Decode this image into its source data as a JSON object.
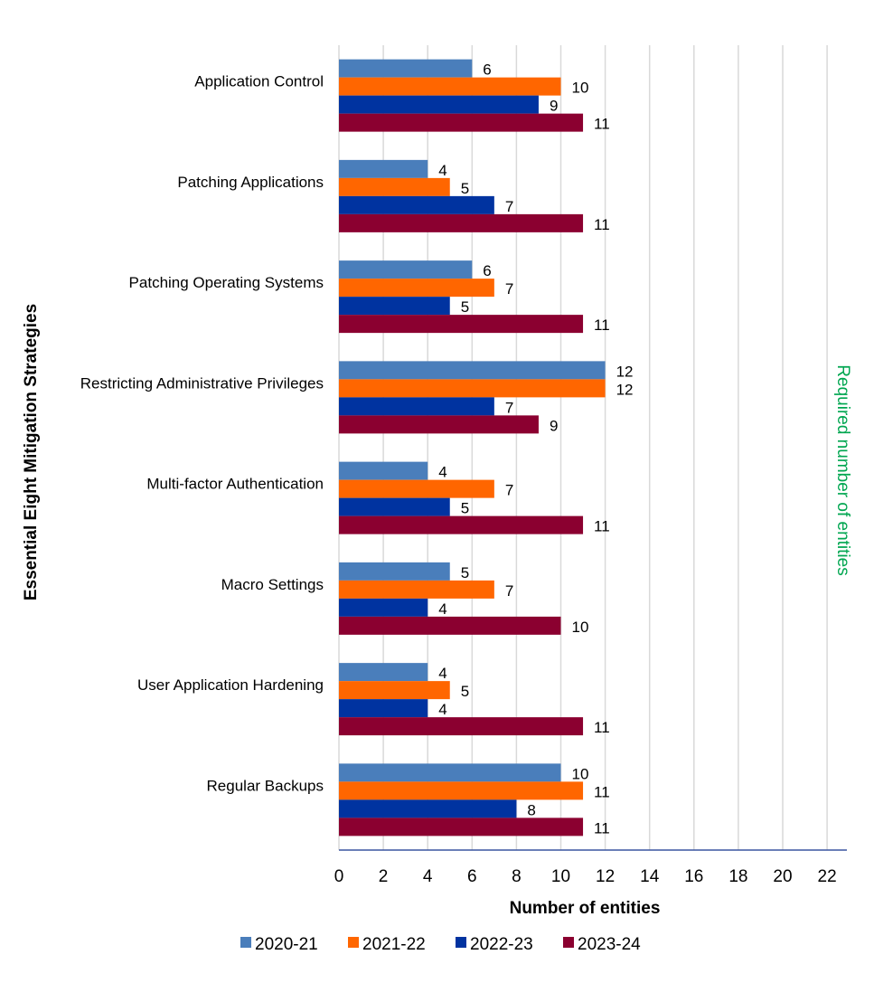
{
  "chart_data": {
    "type": "bar",
    "orientation": "horizontal",
    "categories": [
      "Application Control",
      "Patching Applications",
      "Patching Operating Systems",
      "Restricting Administrative Privileges",
      "Multi-factor Authentication",
      "Macro Settings",
      "User Application Hardening",
      "Regular Backups"
    ],
    "series": [
      {
        "name": "2020-21",
        "color": "#4a7ebb",
        "values": [
          6,
          4,
          6,
          12,
          4,
          5,
          4,
          10
        ]
      },
      {
        "name": "2021-22",
        "color": "#ff6600",
        "values": [
          10,
          5,
          7,
          12,
          7,
          7,
          5,
          11
        ]
      },
      {
        "name": "2022-23",
        "color": "#0033a0",
        "values": [
          9,
          7,
          5,
          7,
          5,
          4,
          4,
          8
        ]
      },
      {
        "name": "2023-24",
        "color": "#8b0030",
        "values": [
          11,
          11,
          11,
          9,
          11,
          10,
          11,
          11
        ]
      }
    ],
    "xlabel": "Number of entities",
    "ylabel": "Essential Eight Mitigation Strategies",
    "xlim": [
      0,
      23
    ],
    "xticks": [
      0,
      2,
      4,
      6,
      8,
      10,
      12,
      14,
      16,
      18,
      20,
      22
    ],
    "grid": "vertical",
    "legend_position": "bottom",
    "annotation": {
      "text": "Required number of entities",
      "color": "#00a650",
      "orientation": "vertical",
      "position": "right"
    }
  }
}
